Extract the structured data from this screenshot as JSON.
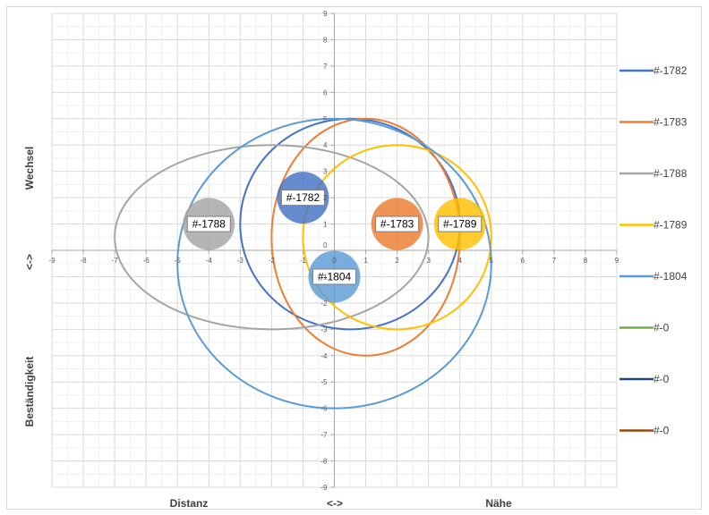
{
  "chart_data": {
    "type": "scatter",
    "xlim": [
      -9,
      9
    ],
    "ylim": [
      -9,
      9
    ],
    "x_ticks": [
      -9,
      -8,
      -7,
      -6,
      -5,
      -4,
      -3,
      -2,
      -1,
      0,
      1,
      2,
      3,
      4,
      5,
      6,
      7,
      8,
      9
    ],
    "y_ticks": [
      9,
      8,
      7,
      6,
      5,
      4,
      3,
      2,
      1,
      0,
      -1,
      -2,
      -3,
      -4,
      -5,
      -6,
      -7,
      -8,
      -9
    ],
    "grid": true,
    "legend_position": "right",
    "axis_labels": {
      "x_left": "Distanz",
      "x_center": "<->",
      "x_right": "Nähe",
      "y_top": "Wechsel",
      "y_center": "<->",
      "y_bottom": "Beständigkeit"
    },
    "series": [
      {
        "name": "#-1782",
        "color": "#4472C4",
        "ellipse": {
          "cx": 0.5,
          "cy": 1,
          "rx": 3.5,
          "ry": 4
        },
        "bubble": {
          "x": -1,
          "y": 2,
          "label": "#-1782"
        }
      },
      {
        "name": "#-1783",
        "color": "#ED7D31",
        "ellipse": {
          "cx": 1,
          "cy": 0.5,
          "rx": 3,
          "ry": 4.5
        },
        "bubble": {
          "x": 2,
          "y": 1,
          "label": "#-1783"
        }
      },
      {
        "name": "#-1788",
        "color": "#A5A5A5",
        "ellipse": {
          "cx": -2,
          "cy": 0.5,
          "rx": 5,
          "ry": 3.5
        },
        "bubble": {
          "x": -4,
          "y": 1,
          "label": "#-1788"
        }
      },
      {
        "name": "#-1789",
        "color": "#FFC000",
        "ellipse": {
          "cx": 2,
          "cy": 0.5,
          "rx": 3,
          "ry": 3.5
        },
        "bubble": {
          "x": 4,
          "y": 1,
          "label": "#-1789"
        }
      },
      {
        "name": "#-1804",
        "color": "#5B9BD5",
        "ellipse": {
          "cx": 0,
          "cy": -0.5,
          "rx": 5,
          "ry": 5.5
        },
        "bubble": {
          "x": 0,
          "y": -1,
          "label": "#-1804"
        }
      },
      {
        "name": "#-0",
        "color": "#70AD47"
      },
      {
        "name": "#-0",
        "color": "#264478"
      },
      {
        "name": "#-0",
        "color": "#9E480E"
      }
    ]
  }
}
